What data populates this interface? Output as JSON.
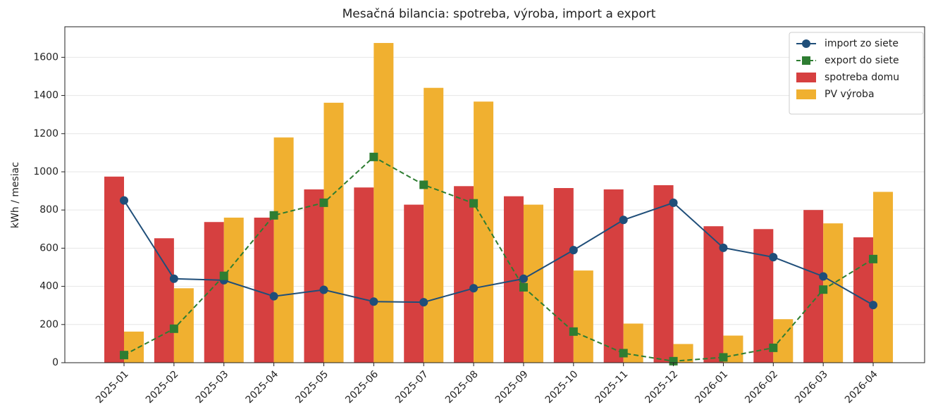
{
  "chart_data": {
    "type": "bar",
    "title": "Mesačná bilancia: spotreba, výroba, import a export",
    "ylabel": "kWh / mesiac",
    "categories": [
      "2025-01",
      "2025-02",
      "2025-03",
      "2025-04",
      "2025-05",
      "2025-06",
      "2025-07",
      "2025-08",
      "2025-09",
      "2025-10",
      "2025-11",
      "2025-12",
      "2026-01",
      "2026-02",
      "2026-03",
      "2026-04"
    ],
    "series": [
      {
        "name": "import zo siete",
        "type": "line",
        "marker": "circle",
        "dashed": false,
        "color": "#1f4e79",
        "values": [
          850,
          440,
          432,
          348,
          382,
          320,
          317,
          390,
          440,
          590,
          748,
          838,
          602,
          553,
          452,
          302
        ]
      },
      {
        "name": "export do siete",
        "type": "line",
        "marker": "square",
        "dashed": true,
        "color": "#2e7d32",
        "values": [
          40,
          178,
          455,
          772,
          838,
          1078,
          932,
          835,
          395,
          163,
          50,
          8,
          28,
          78,
          383,
          543
        ]
      },
      {
        "name": "spotreba domu",
        "type": "bar",
        "color": "#d64040",
        "values": [
          975,
          652,
          737,
          760,
          908,
          918,
          828,
          925,
          872,
          915,
          908,
          930,
          715,
          700,
          800,
          657
        ]
      },
      {
        "name": "PV výroba",
        "type": "bar",
        "color": "#f0b030",
        "values": [
          163,
          390,
          760,
          1180,
          1362,
          1675,
          1440,
          1368,
          828,
          483,
          205,
          98,
          142,
          228,
          730,
          895
        ]
      }
    ],
    "ylim": [
      0,
      1760
    ],
    "yticks": [
      0,
      200,
      400,
      600,
      800,
      1000,
      1200,
      1400,
      1600
    ],
    "grid": true,
    "legend": "upper-right"
  }
}
